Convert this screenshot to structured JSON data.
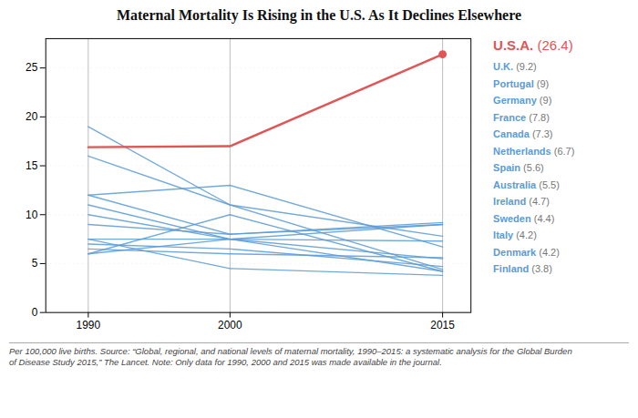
{
  "chart_data": {
    "type": "line",
    "title": "Maternal Mortality Is Rising in the U.S. As It Declines Elsewhere",
    "x": [
      1990,
      2000,
      2015
    ],
    "series": [
      {
        "name": "U.K.",
        "color": "#5b9bd5",
        "values": [
          9.0,
          8.0,
          9.2
        ]
      },
      {
        "name": "Portugal",
        "color": "#5b9bd5",
        "values": [
          11.0,
          7.5,
          9.0
        ]
      },
      {
        "name": "Germany",
        "color": "#5b9bd5",
        "values": [
          12.0,
          8.0,
          9.0
        ]
      },
      {
        "name": "France",
        "color": "#5b9bd5",
        "values": [
          16.0,
          11.0,
          7.8
        ]
      },
      {
        "name": "Canada",
        "color": "#5b9bd5",
        "values": [
          7.5,
          7.5,
          7.3
        ]
      },
      {
        "name": "Netherlands",
        "color": "#5b9bd5",
        "values": [
          12.0,
          13.0,
          6.7
        ]
      },
      {
        "name": "Spain",
        "color": "#5b9bd5",
        "values": [
          6.5,
          6.0,
          5.6
        ]
      },
      {
        "name": "Australia",
        "color": "#5b9bd5",
        "values": [
          6.0,
          7.5,
          5.5
        ]
      },
      {
        "name": "Ireland",
        "color": "#5b9bd5",
        "values": [
          7.0,
          6.5,
          4.7
        ]
      },
      {
        "name": "Sweden",
        "color": "#5b9bd5",
        "values": [
          19.0,
          11.0,
          4.4
        ]
      },
      {
        "name": "Italy",
        "color": "#5b9bd5",
        "values": [
          10.0,
          7.5,
          4.2
        ]
      },
      {
        "name": "Denmark",
        "color": "#5b9bd5",
        "values": [
          6.0,
          10.0,
          4.2
        ]
      },
      {
        "name": "Finland",
        "color": "#5b9bd5",
        "values": [
          7.5,
          4.5,
          3.8
        ]
      },
      {
        "name": "U.S.A.",
        "color": "#e05555",
        "values": [
          16.9,
          17.0,
          26.4
        ],
        "marker": "circle"
      }
    ],
    "annotations": [
      "(9.2)",
      "(9)",
      "(9)",
      "(7.8)",
      "(7.3)",
      "(6.7)",
      "(5.6)",
      "(5.5)",
      "(4.7)",
      "(4.4)",
      "(4.2)",
      "(4.2)",
      "(3.8)",
      "(26.4)"
    ],
    "xlim": [
      1987,
      2017
    ],
    "xticks": [
      1990,
      2000,
      2015
    ],
    "ylim": [
      0,
      28
    ],
    "yticks": [
      0,
      5,
      10,
      15,
      20,
      25
    ],
    "grid": true,
    "legend": "right",
    "caption": [
      "Per 100,000 live births. Source: “Global, regional, and national levels of maternal mortality, 1990–2015: a systematic analysis for the Global Burden",
      "of Disease Study 2015,” The Lancet. Note: Only data for 1990, 2000 and 2015 was made available in the journal."
    ]
  }
}
